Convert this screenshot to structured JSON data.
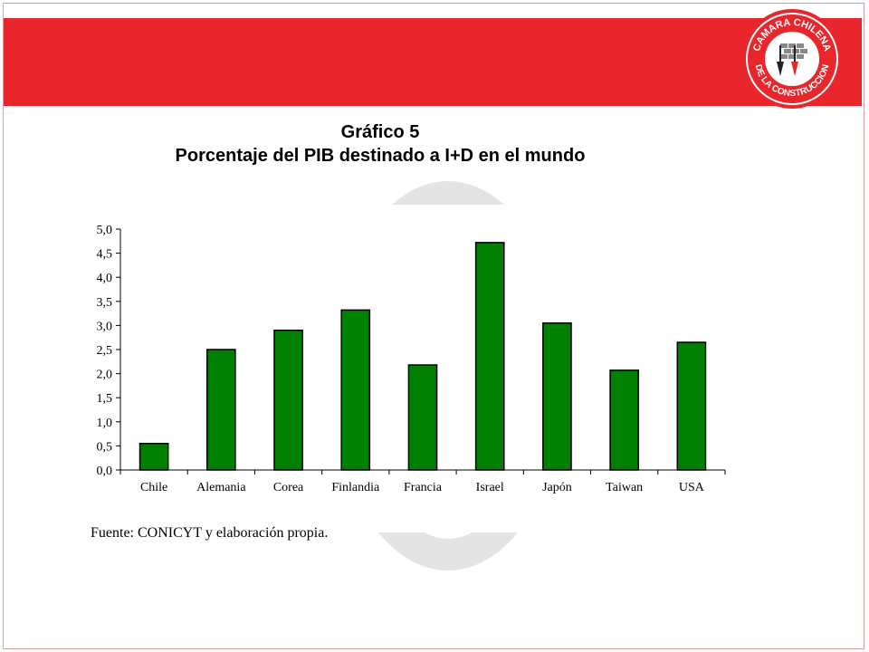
{
  "slide": {
    "title_line1": "Gráfico 5",
    "title_line2": "Porcentaje del PIB destinado a I+D en el mundo",
    "source": "Fuente: CONICYT y elaboración propia.",
    "logo_text_top": "CAMARA CHILENA",
    "logo_text_bottom": "DE LA CONSTRUCCION"
  },
  "colors": {
    "band": "#e8262c",
    "bar": "#008000"
  },
  "chart_data": {
    "type": "bar",
    "categories": [
      "Chile",
      "Alemania",
      "Corea",
      "Finlandia",
      "Francia",
      "Israel",
      "Japón",
      "Taiwan",
      "USA"
    ],
    "values": [
      0.55,
      2.5,
      2.9,
      3.32,
      2.18,
      4.72,
      3.05,
      2.07,
      2.65
    ],
    "ylim": [
      0,
      5
    ],
    "yticks": [
      "0,0",
      "0,5",
      "1,0",
      "1,5",
      "2,0",
      "2,5",
      "3,0",
      "3,5",
      "4,0",
      "4,5",
      "5,0"
    ],
    "title": "",
    "xlabel": "",
    "ylabel": ""
  }
}
